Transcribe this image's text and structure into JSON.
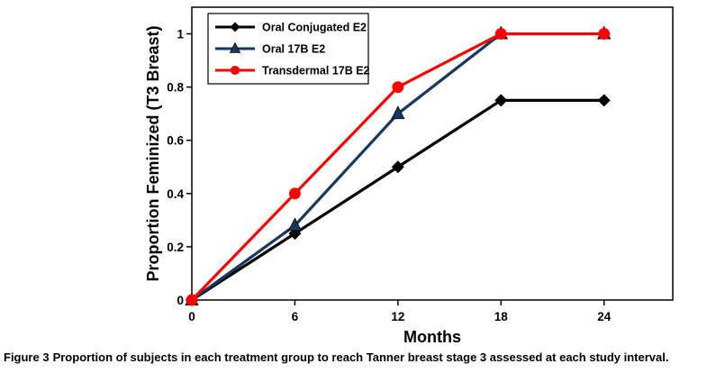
{
  "chart_data": {
    "type": "line",
    "title": "",
    "x": [
      0,
      6,
      12,
      18,
      24
    ],
    "series": [
      {
        "name": "Oral Conjugated E2",
        "color": "#000000",
        "marker": "diamond",
        "values": [
          0,
          0.25,
          0.5,
          0.75,
          0.75
        ]
      },
      {
        "name": "Oral 17B E2",
        "color": "#17375E",
        "marker": "triangle",
        "values": [
          0,
          0.28,
          0.7,
          1,
          1
        ]
      },
      {
        "name": "Transdermal 17B E2",
        "color": "#FF0000",
        "marker": "circle",
        "values": [
          0,
          0.4,
          0.8,
          1,
          1
        ]
      }
    ],
    "xlabel": "Months",
    "ylabel": "Proportion Feminized (T3 Breast)",
    "xlim": [
      0,
      28
    ],
    "ylim": [
      0,
      1.1
    ],
    "xticks": [
      0,
      6,
      12,
      18,
      24
    ],
    "yticks": [
      0,
      0.2,
      0.4,
      0.6,
      0.8,
      1
    ],
    "grid": false,
    "legend_position": "top-left",
    "plot_background": "#FFFFFF",
    "border_color": "#000000"
  },
  "caption": {
    "prefix": "Figure 3",
    "text": "Proportion of subjects in each treatment group to reach Tanner breast stage 3 assessed at each study interval."
  }
}
